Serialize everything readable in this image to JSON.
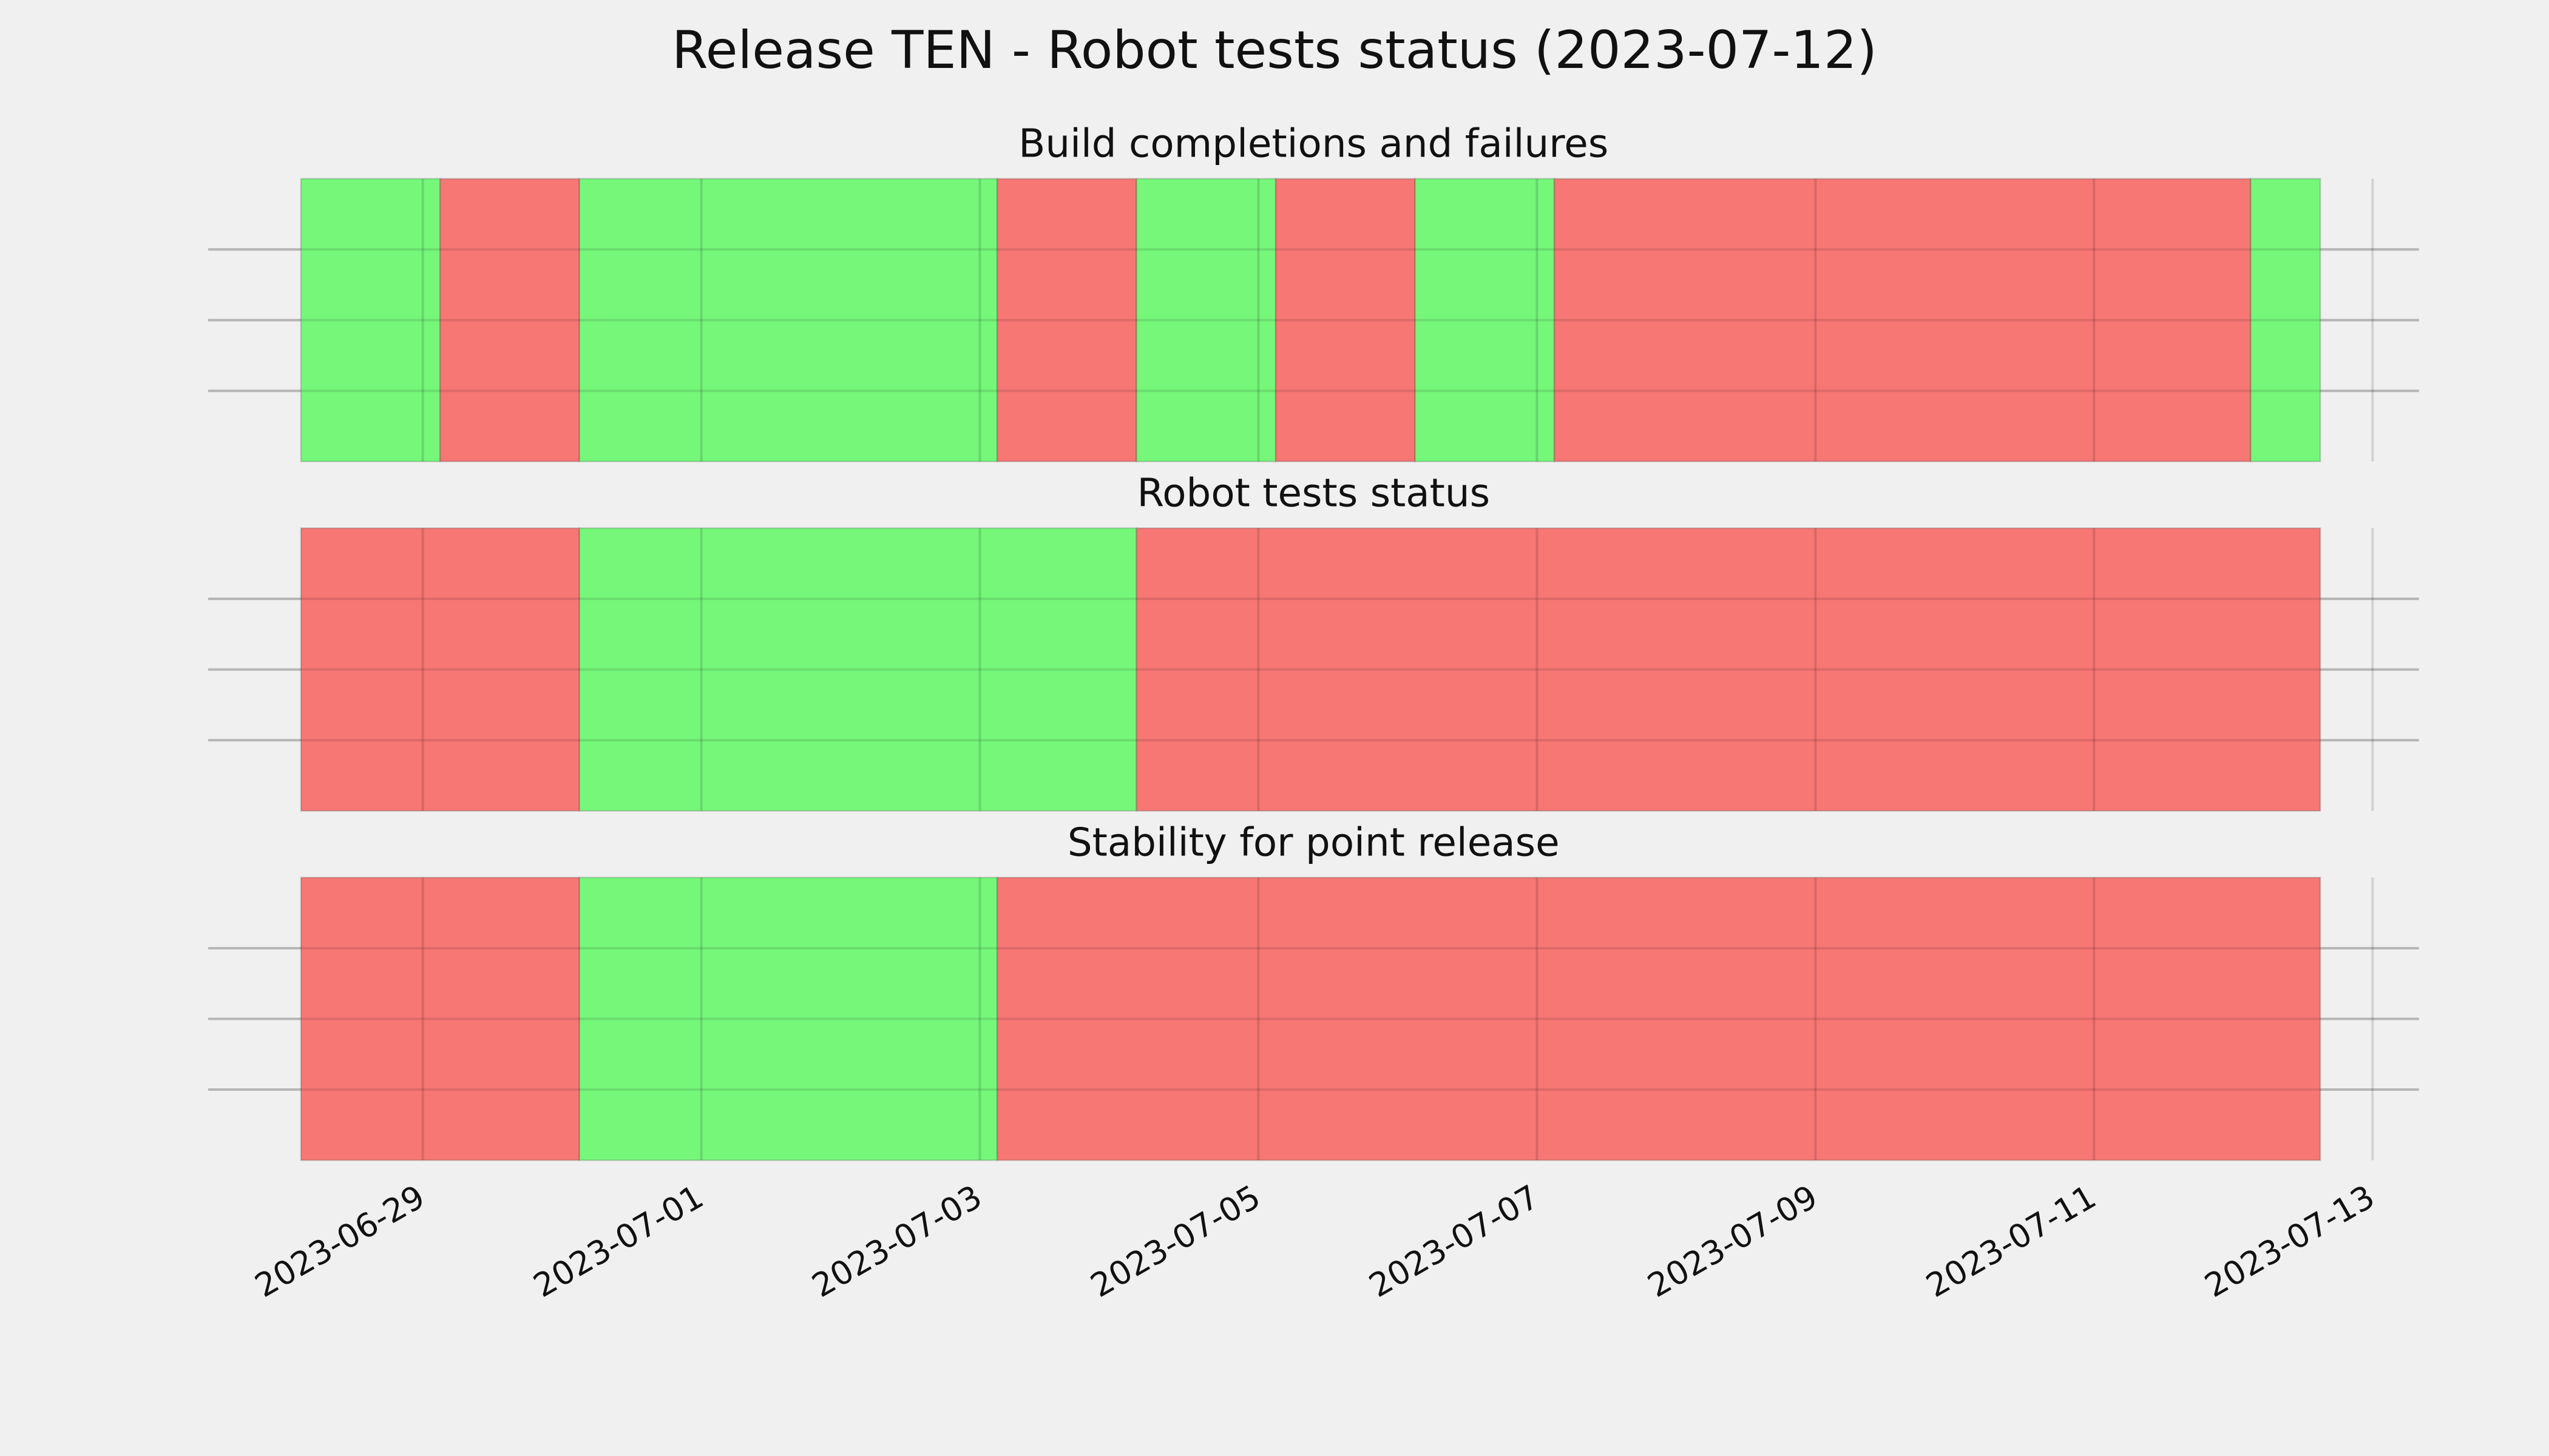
{
  "chart_data": {
    "type": "timeline",
    "title": "Release TEN - Robot tests status (2023-07-12)",
    "xlim": [
      "2023-06-27T11:00",
      "2023-07-13T08:00"
    ],
    "xticks": [
      "2023-06-29",
      "2023-07-01",
      "2023-07-03",
      "2023-07-05",
      "2023-07-07",
      "2023-07-09",
      "2023-07-11",
      "2023-07-13"
    ],
    "ylim": [
      0,
      1
    ],
    "yticks": [
      0.25,
      0.5,
      0.75
    ],
    "grid": true,
    "panels": [
      {
        "title": "Build completions and failures",
        "segments": [
          {
            "start": "2023-06-28T03:00",
            "end": "2023-06-29T03:00",
            "color": "#76f77a"
          },
          {
            "start": "2023-06-29T03:00",
            "end": "2023-06-30T03:00",
            "color": "#f77774"
          },
          {
            "start": "2023-06-30T03:00",
            "end": "2023-07-03T03:00",
            "color": "#76f77a"
          },
          {
            "start": "2023-07-03T03:00",
            "end": "2023-07-04T03:00",
            "color": "#f77774"
          },
          {
            "start": "2023-07-04T03:00",
            "end": "2023-07-05T03:00",
            "color": "#76f77a"
          },
          {
            "start": "2023-07-05T03:00",
            "end": "2023-07-06T03:00",
            "color": "#f77774"
          },
          {
            "start": "2023-07-06T03:00",
            "end": "2023-07-07T03:00",
            "color": "#76f77a"
          },
          {
            "start": "2023-07-07T03:00",
            "end": "2023-07-12T03:00",
            "color": "#f77774"
          },
          {
            "start": "2023-07-12T03:00",
            "end": "2023-07-12T15:00",
            "color": "#76f77a"
          }
        ]
      },
      {
        "title": "Robot tests status",
        "segments": [
          {
            "start": "2023-06-28T03:00",
            "end": "2023-06-30T03:00",
            "color": "#f77774"
          },
          {
            "start": "2023-06-30T03:00",
            "end": "2023-07-04T03:00",
            "color": "#76f77a"
          },
          {
            "start": "2023-07-04T03:00",
            "end": "2023-07-12T15:00",
            "color": "#f77774"
          }
        ]
      },
      {
        "title": "Stability for point release",
        "segments": [
          {
            "start": "2023-06-28T03:00",
            "end": "2023-06-30T03:00",
            "color": "#f77774"
          },
          {
            "start": "2023-06-30T03:00",
            "end": "2023-07-03T03:00",
            "color": "#76f77a"
          },
          {
            "start": "2023-07-03T03:00",
            "end": "2023-07-12T15:00",
            "color": "#f77774"
          }
        ]
      }
    ]
  }
}
